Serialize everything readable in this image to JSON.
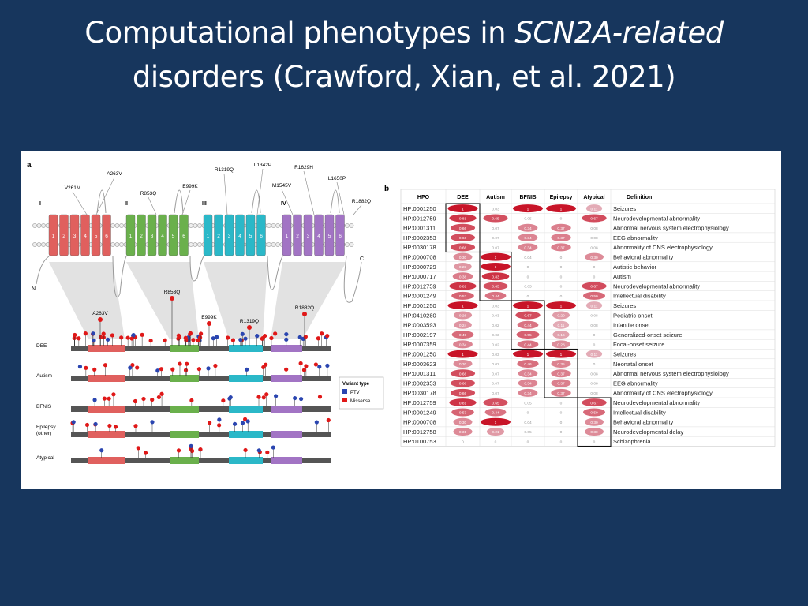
{
  "slide": {
    "title_parts": [
      "Computational phenotypes in ",
      "SCN2A-related",
      "disorders (Crawford, Xian, et al. 2021)"
    ]
  },
  "panel_a": {
    "label": "a",
    "domains": [
      "I",
      "II",
      "III",
      "IV"
    ],
    "segments": [
      "1",
      "2",
      "3",
      "4",
      "5",
      "6"
    ],
    "terminals": [
      "N",
      "C"
    ],
    "top_variants": [
      "V261M",
      "A263V",
      "R853Q",
      "E999K",
      "R1319Q",
      "L1342P",
      "M1545V",
      "R1629H",
      "L1650P",
      "R1882Q"
    ],
    "track_variants": [
      "A263V",
      "R853Q",
      "E999K",
      "R1319Q",
      "R1882Q"
    ],
    "tracks": [
      "DEE",
      "Autism",
      "BFNIS",
      "Epilepsy\n(other)",
      "Atypical"
    ],
    "legend": {
      "title": "Variant type",
      "items": [
        "PTV",
        "Missense"
      ]
    }
  },
  "panel_b": {
    "label": "b",
    "columns": [
      "HPO",
      "DEE",
      "Autism",
      "BFNIS",
      "Epilepsy",
      "Atypical",
      "Definition"
    ],
    "rows": [
      [
        "HP:0001250",
        "1",
        "0.03",
        "1",
        "1",
        "0.11",
        "Seizures"
      ],
      [
        "HP:0012759",
        "0.81",
        "0.65",
        "0.05",
        "0",
        "0.67",
        "Neurodevelopmental abnormality"
      ],
      [
        "HP:0001311",
        "0.66",
        "0.07",
        "0.34",
        "0.37",
        "0.08",
        "Abnormal nervous system electrophysiology"
      ],
      [
        "HP:0002353",
        "0.66",
        "0.07",
        "0.34",
        "0.37",
        "0.08",
        "EEG abnormality"
      ],
      [
        "HP:0030178",
        "0.66",
        "0.07",
        "0.34",
        "0.37",
        "0.08",
        "Abnormality of CNS electrophysiology"
      ],
      [
        "HP:0000708",
        "0.30",
        "1",
        "0.04",
        "0",
        "0.30",
        "Behavioral abnormality"
      ],
      [
        "HP:0000729",
        "0.23",
        "1",
        "0",
        "0",
        "0",
        "Autistic behavior"
      ],
      [
        "HP:0000717",
        "0.38",
        "0.83",
        "0",
        "0",
        "0",
        "Autism"
      ],
      [
        "HP:0012759",
        "0.81",
        "0.65",
        "0.05",
        "0",
        "0.67",
        "Neurodevelopmental abnormality"
      ],
      [
        "HP:0001249",
        "0.53",
        "0.44",
        "0",
        "0",
        "0.50",
        "Intellectual disability"
      ],
      [
        "HP:0001250",
        "1",
        "0.03",
        "1",
        "1",
        "0.11",
        "Seizures"
      ],
      [
        "HP:0410280",
        "0.26",
        "0.03",
        "0.67",
        "0.20",
        "0.08",
        "Pediatric onset"
      ],
      [
        "HP:0003593",
        "0.24",
        "0.02",
        "0.44",
        "0.11",
        "0.08",
        "Infantile onset"
      ],
      [
        "HP:0002197",
        "0.49",
        "0.03",
        "0.55",
        "0.16",
        "0",
        "Generalized-onset seizure"
      ],
      [
        "HP:0007359",
        "0.34",
        "0.02",
        "0.44",
        "0.28",
        "0",
        "Focal-onset seizure"
      ],
      [
        "HP:0001250",
        "1",
        "0.03",
        "1",
        "1",
        "0.11",
        "Seizures"
      ],
      [
        "HP:0003623",
        "0.30",
        "0.02",
        "0.46",
        "0.35",
        "0",
        "Neonatal onset"
      ],
      [
        "HP:0001311",
        "0.66",
        "0.07",
        "0.34",
        "0.37",
        "0.08",
        "Abnormal nervous system electrophysiology"
      ],
      [
        "HP:0002353",
        "0.66",
        "0.07",
        "0.34",
        "0.37",
        "0.08",
        "EEG abnormality"
      ],
      [
        "HP:0030178",
        "0.66",
        "0.07",
        "0.34",
        "0.37",
        "0.08",
        "Abnormality of CNS electrophysiology"
      ],
      [
        "HP:0012759",
        "0.81",
        "0.65",
        "0.05",
        "0",
        "0.67",
        "Neurodevelopmental abnormality"
      ],
      [
        "HP:0001249",
        "0.53",
        "0.44",
        "0",
        "0",
        "0.50",
        "Intellectual disability"
      ],
      [
        "HP:0000708",
        "0.30",
        "1",
        "0.04",
        "0",
        "0.30",
        "Behavioral abnormality"
      ],
      [
        "HP:0012758",
        "0.31",
        "0.21",
        "0.05",
        "0",
        "0.30",
        "Neurodevelopmental delay"
      ],
      [
        "HP:0100753",
        "0",
        "0",
        "0",
        "0",
        "0",
        "Schizophrenia"
      ]
    ]
  }
}
